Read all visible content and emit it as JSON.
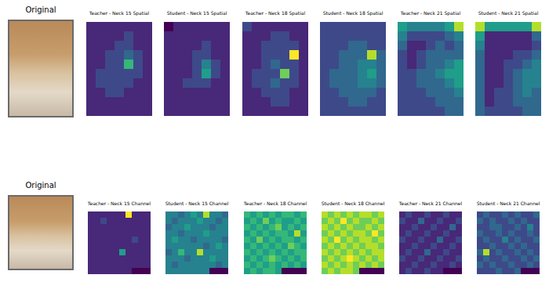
{
  "chart_data": [
    {
      "type": "image",
      "title": "Original"
    },
    {
      "type": "heatmap",
      "title": "Teacher - Neck 15 Spatial",
      "color": "viridis",
      "zlim": [
        0,
        9
      ],
      "tick_labels": false,
      "cells": [
        [
          1,
          1,
          1,
          1,
          1,
          1,
          1
        ],
        [
          1,
          1,
          1,
          1,
          2,
          1,
          1
        ],
        [
          1,
          1,
          1,
          2,
          2,
          1,
          1
        ],
        [
          1,
          1,
          2,
          2,
          3,
          2,
          1
        ],
        [
          1,
          1,
          2,
          2,
          6,
          2,
          1
        ],
        [
          1,
          2,
          2,
          2,
          2,
          2,
          1
        ],
        [
          1,
          2,
          2,
          2,
          2,
          1,
          1
        ],
        [
          1,
          1,
          2,
          2,
          1,
          1,
          1
        ],
        [
          1,
          1,
          1,
          1,
          1,
          1,
          1
        ],
        [
          1,
          1,
          1,
          1,
          1,
          1,
          1
        ]
      ]
    },
    {
      "type": "heatmap",
      "title": "Student - Neck 15 Spatial",
      "color": "viridis",
      "zlim": [
        0,
        9
      ],
      "tick_labels": false,
      "cells": [
        [
          0,
          1,
          1,
          1,
          1,
          1,
          1
        ],
        [
          1,
          1,
          1,
          1,
          1,
          1,
          1
        ],
        [
          1,
          1,
          1,
          1,
          2,
          1,
          1
        ],
        [
          1,
          1,
          1,
          2,
          2,
          1,
          1
        ],
        [
          1,
          1,
          1,
          2,
          4,
          2,
          1
        ],
        [
          1,
          1,
          1,
          2,
          5,
          2,
          1
        ],
        [
          1,
          1,
          2,
          2,
          2,
          1,
          1
        ],
        [
          1,
          1,
          1,
          1,
          1,
          1,
          1
        ],
        [
          1,
          1,
          1,
          1,
          1,
          1,
          1
        ],
        [
          1,
          1,
          1,
          1,
          1,
          1,
          1
        ]
      ]
    },
    {
      "type": "heatmap",
      "title": "Teacher - Neck 18 Spatial",
      "color": "viridis",
      "zlim": [
        0,
        9
      ],
      "tick_labels": false,
      "cells": [
        [
          2,
          1,
          1,
          1,
          1,
          1,
          1
        ],
        [
          1,
          1,
          1,
          2,
          2,
          1,
          1
        ],
        [
          1,
          1,
          2,
          2,
          2,
          2,
          1
        ],
        [
          1,
          1,
          2,
          2,
          2,
          9,
          1
        ],
        [
          1,
          1,
          2,
          3,
          2,
          2,
          1
        ],
        [
          1,
          2,
          2,
          2,
          7,
          2,
          1
        ],
        [
          1,
          2,
          2,
          3,
          2,
          2,
          1
        ],
        [
          1,
          1,
          2,
          2,
          2,
          1,
          1
        ],
        [
          1,
          1,
          1,
          2,
          2,
          1,
          1
        ],
        [
          1,
          1,
          1,
          1,
          1,
          1,
          1
        ]
      ]
    },
    {
      "type": "heatmap",
      "title": "Student - Neck 18 Spatial",
      "color": "viridis",
      "zlim": [
        0,
        9
      ],
      "tick_labels": false,
      "cells": [
        [
          2,
          2,
          2,
          2,
          2,
          2,
          2
        ],
        [
          2,
          2,
          2,
          2,
          2,
          2,
          2
        ],
        [
          2,
          2,
          2,
          3,
          3,
          2,
          2
        ],
        [
          2,
          2,
          3,
          3,
          3,
          8,
          3
        ],
        [
          2,
          2,
          3,
          3,
          4,
          4,
          3
        ],
        [
          2,
          3,
          3,
          3,
          4,
          5,
          3
        ],
        [
          2,
          3,
          3,
          3,
          4,
          4,
          3
        ],
        [
          2,
          2,
          3,
          3,
          3,
          3,
          2
        ],
        [
          2,
          2,
          2,
          3,
          3,
          2,
          2
        ],
        [
          2,
          2,
          2,
          2,
          2,
          2,
          2
        ]
      ]
    },
    {
      "type": "heatmap",
      "title": "Teacher - Neck 21 Spatial",
      "color": "viridis",
      "zlim": [
        0,
        9
      ],
      "tick_labels": false,
      "cells": [
        [
          5,
          4,
          4,
          4,
          4,
          5,
          8
        ],
        [
          4,
          2,
          2,
          2,
          2,
          3,
          4
        ],
        [
          3,
          1,
          1,
          2,
          3,
          2,
          3
        ],
        [
          2,
          1,
          2,
          3,
          3,
          3,
          3
        ],
        [
          2,
          1,
          2,
          3,
          3,
          4,
          5
        ],
        [
          2,
          2,
          3,
          3,
          4,
          5,
          5
        ],
        [
          2,
          2,
          3,
          3,
          3,
          4,
          5
        ],
        [
          2,
          2,
          2,
          3,
          3,
          3,
          4
        ],
        [
          2,
          2,
          2,
          2,
          3,
          3,
          3
        ],
        [
          2,
          2,
          2,
          2,
          2,
          3,
          3
        ]
      ]
    },
    {
      "type": "heatmap",
      "title": "Student - Neck 21 Spatial",
      "color": "viridis",
      "zlim": [
        0,
        9
      ],
      "tick_labels": false,
      "cells": [
        [
          8,
          5,
          5,
          5,
          5,
          5,
          8
        ],
        [
          5,
          1,
          1,
          1,
          1,
          1,
          3
        ],
        [
          4,
          1,
          1,
          1,
          1,
          1,
          2
        ],
        [
          3,
          1,
          1,
          1,
          2,
          2,
          3
        ],
        [
          3,
          1,
          1,
          2,
          2,
          3,
          4
        ],
        [
          3,
          1,
          1,
          2,
          3,
          4,
          4
        ],
        [
          3,
          1,
          1,
          2,
          3,
          4,
          4
        ],
        [
          3,
          1,
          2,
          2,
          3,
          4,
          3
        ],
        [
          3,
          1,
          2,
          2,
          3,
          3,
          3
        ],
        [
          3,
          2,
          2,
          2,
          2,
          3,
          3
        ]
      ]
    },
    {
      "type": "image",
      "title": "Original"
    },
    {
      "type": "heatmap",
      "title": "Teacher - Neck 15 Channel",
      "color": "viridis",
      "zlim": [
        0,
        9
      ],
      "tick_labels": false,
      "cells": [
        [
          1,
          1,
          1,
          1,
          1,
          1,
          9,
          1,
          1,
          1
        ],
        [
          1,
          1,
          2,
          1,
          1,
          1,
          1,
          1,
          1,
          1
        ],
        [
          1,
          1,
          1,
          1,
          1,
          1,
          1,
          1,
          1,
          1
        ],
        [
          1,
          1,
          1,
          1,
          1,
          1,
          1,
          1,
          1,
          1
        ],
        [
          1,
          1,
          1,
          1,
          1,
          1,
          1,
          2,
          1,
          1
        ],
        [
          1,
          1,
          1,
          1,
          1,
          1,
          1,
          1,
          1,
          1
        ],
        [
          1,
          1,
          1,
          1,
          1,
          5,
          1,
          1,
          1,
          1
        ],
        [
          1,
          1,
          1,
          1,
          1,
          1,
          1,
          1,
          1,
          1
        ],
        [
          1,
          1,
          1,
          1,
          1,
          1,
          1,
          1,
          1,
          1
        ],
        [
          1,
          1,
          1,
          1,
          1,
          1,
          1,
          0,
          0,
          0
        ]
      ]
    },
    {
      "type": "heatmap",
      "title": "Student - Neck 15 Channel",
      "color": "viridis",
      "zlim": [
        0,
        9
      ],
      "tick_labels": false,
      "cells": [
        [
          4,
          4,
          3,
          4,
          5,
          4,
          8,
          4,
          4,
          3
        ],
        [
          4,
          3,
          4,
          4,
          4,
          5,
          4,
          4,
          3,
          4
        ],
        [
          3,
          4,
          4,
          5,
          4,
          4,
          4,
          3,
          4,
          4
        ],
        [
          4,
          4,
          3,
          4,
          4,
          4,
          5,
          4,
          4,
          4
        ],
        [
          4,
          5,
          4,
          4,
          3,
          4,
          4,
          4,
          4,
          3
        ],
        [
          4,
          4,
          4,
          4,
          4,
          4,
          3,
          4,
          5,
          4
        ],
        [
          3,
          4,
          6,
          4,
          4,
          8,
          4,
          4,
          4,
          4
        ],
        [
          4,
          4,
          4,
          3,
          4,
          4,
          4,
          5,
          4,
          4
        ],
        [
          4,
          3,
          4,
          4,
          4,
          4,
          4,
          4,
          3,
          4
        ],
        [
          4,
          4,
          4,
          4,
          4,
          4,
          4,
          0,
          0,
          0
        ]
      ]
    },
    {
      "type": "heatmap",
      "title": "Teacher - Neck 18 Channel",
      "color": "viridis",
      "zlim": [
        0,
        9
      ],
      "tick_labels": false,
      "cells": [
        [
          6,
          5,
          6,
          5,
          6,
          5,
          6,
          6,
          5,
          6
        ],
        [
          5,
          6,
          5,
          7,
          5,
          6,
          5,
          5,
          6,
          5
        ],
        [
          6,
          5,
          6,
          5,
          6,
          7,
          5,
          6,
          5,
          6
        ],
        [
          5,
          6,
          5,
          6,
          5,
          6,
          6,
          5,
          8,
          5
        ],
        [
          6,
          5,
          7,
          5,
          6,
          5,
          6,
          6,
          5,
          6
        ],
        [
          5,
          6,
          5,
          6,
          5,
          6,
          5,
          7,
          6,
          5
        ],
        [
          6,
          5,
          6,
          5,
          6,
          5,
          6,
          5,
          6,
          6
        ],
        [
          5,
          6,
          5,
          6,
          7,
          6,
          5,
          6,
          5,
          6
        ],
        [
          6,
          5,
          6,
          5,
          6,
          5,
          6,
          5,
          6,
          5
        ],
        [
          5,
          6,
          5,
          6,
          6,
          5,
          0,
          0,
          0,
          0
        ]
      ]
    },
    {
      "type": "heatmap",
      "title": "Student - Neck 18 Channel",
      "color": "viridis",
      "zlim": [
        0,
        9
      ],
      "tick_labels": false,
      "cells": [
        [
          8,
          7,
          8,
          7,
          8,
          7,
          8,
          8,
          7,
          8
        ],
        [
          7,
          8,
          7,
          9,
          7,
          8,
          7,
          7,
          8,
          7
        ],
        [
          8,
          7,
          8,
          7,
          8,
          7,
          7,
          8,
          7,
          8
        ],
        [
          7,
          8,
          7,
          8,
          7,
          8,
          8,
          7,
          9,
          7
        ],
        [
          8,
          7,
          9,
          7,
          8,
          7,
          8,
          8,
          7,
          8
        ],
        [
          7,
          8,
          7,
          8,
          7,
          8,
          7,
          8,
          8,
          7
        ],
        [
          8,
          7,
          8,
          7,
          8,
          7,
          8,
          7,
          8,
          8
        ],
        [
          7,
          8,
          7,
          8,
          9,
          8,
          7,
          8,
          7,
          8
        ],
        [
          8,
          7,
          8,
          7,
          8,
          7,
          8,
          7,
          8,
          7
        ],
        [
          7,
          8,
          7,
          8,
          8,
          7,
          0,
          0,
          0,
          0
        ]
      ]
    },
    {
      "type": "heatmap",
      "title": "Teacher - Neck 21 Channel",
      "color": "viridis",
      "zlim": [
        0,
        9
      ],
      "tick_labels": false,
      "cells": [
        [
          1,
          2,
          1,
          1,
          2,
          1,
          1,
          2,
          1,
          1
        ],
        [
          2,
          1,
          1,
          3,
          1,
          1,
          2,
          1,
          1,
          2
        ],
        [
          1,
          1,
          2,
          1,
          1,
          2,
          1,
          1,
          3,
          1
        ],
        [
          1,
          2,
          1,
          1,
          2,
          1,
          1,
          2,
          1,
          1
        ],
        [
          2,
          1,
          1,
          2,
          1,
          1,
          3,
          1,
          1,
          2
        ],
        [
          1,
          1,
          2,
          1,
          1,
          2,
          1,
          1,
          2,
          1
        ],
        [
          1,
          2,
          1,
          1,
          3,
          1,
          1,
          2,
          1,
          1
        ],
        [
          2,
          1,
          1,
          2,
          1,
          1,
          2,
          1,
          1,
          2
        ],
        [
          1,
          1,
          2,
          1,
          1,
          2,
          1,
          1,
          2,
          1
        ],
        [
          1,
          2,
          1,
          1,
          2,
          1,
          1,
          0,
          0,
          0
        ]
      ]
    },
    {
      "type": "heatmap",
      "title": "Student - Neck 21 Channel",
      "color": "viridis",
      "zlim": [
        0,
        9
      ],
      "tick_labels": false,
      "cells": [
        [
          2,
          3,
          2,
          2,
          3,
          2,
          3,
          2,
          2,
          3
        ],
        [
          3,
          2,
          3,
          2,
          2,
          3,
          2,
          3,
          2,
          2
        ],
        [
          2,
          2,
          3,
          3,
          2,
          2,
          3,
          2,
          4,
          2
        ],
        [
          3,
          2,
          2,
          3,
          2,
          3,
          2,
          2,
          3,
          2
        ],
        [
          2,
          3,
          2,
          2,
          4,
          2,
          3,
          2,
          2,
          3
        ],
        [
          2,
          2,
          3,
          2,
          2,
          3,
          2,
          3,
          2,
          2
        ],
        [
          3,
          8,
          2,
          3,
          2,
          2,
          3,
          2,
          3,
          2
        ],
        [
          2,
          3,
          2,
          2,
          3,
          2,
          2,
          3,
          2,
          3
        ],
        [
          3,
          2,
          3,
          2,
          2,
          3,
          2,
          2,
          3,
          2
        ],
        [
          2,
          2,
          2,
          3,
          2,
          2,
          3,
          0,
          0,
          0
        ]
      ]
    }
  ]
}
